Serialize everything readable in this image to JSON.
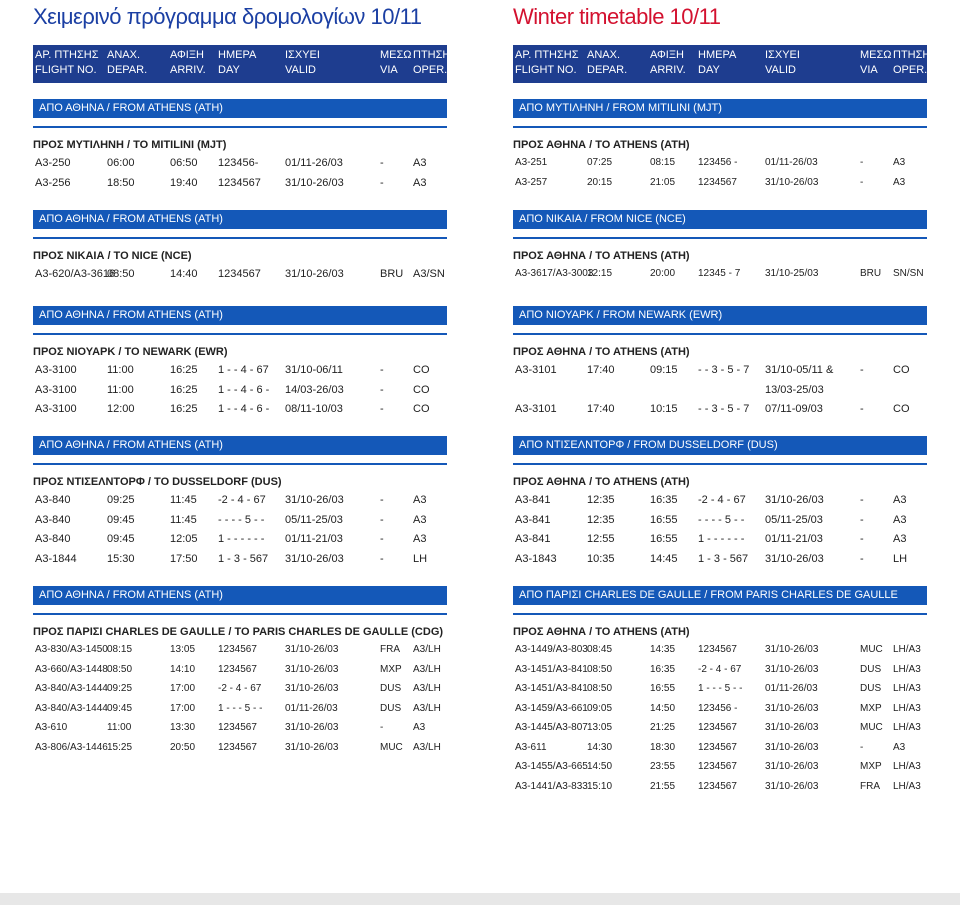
{
  "left": {
    "title": "Χειμερινό πρόγραμμα δρομολογίων 10/11",
    "header": {
      "gr": [
        "ΑΡ. ΠΤΗΣΗΣ",
        "ΑΝΑΧ.",
        "ΑΦΙΞΗ",
        "ΗΜΕΡΑ",
        "ΙΣΧΥΕΙ",
        "ΜΕΣΩ",
        "ΠΤΗΣΗ"
      ],
      "en": [
        "FLIGHT NO.",
        "DEPAR.",
        "ARRIV.",
        "DAY",
        "VALID",
        "VIA",
        "OPER."
      ]
    },
    "sections": [
      {
        "bar": "ΑΠΟ ΑΘΗΝΑ / FROM ATHENS (ATH)",
        "sub": "ΠΡΟΣ ΜΥΤΙΛΗΝΗ / TO MITILINI (MJT)",
        "rows": [
          [
            "A3-250",
            "06:00",
            "06:50",
            "123456-",
            "01/11-26/03",
            "-",
            "A3"
          ],
          [
            "A3-256",
            "18:50",
            "19:40",
            "1234567",
            "31/10-26/03",
            "-",
            "A3"
          ]
        ]
      },
      {
        "bar": "ΑΠΟ ΑΘΗΝΑ / FROM ATHENS (ATH)",
        "sub": "ΠΡΟΣ ΝΙΚΑΙΑ / TO NICE (NCE)",
        "rows": [
          [
            "A3-620/A3-3616",
            "08:50",
            "14:40",
            "1234567",
            "31/10-26/03",
            "BRU",
            "A3/SN"
          ]
        ]
      },
      {
        "bar": "ΑΠΟ ΑΘΗΝΑ / FROM ATHENS (ATH)",
        "sub": "ΠΡΟΣ ΝΙΟΥΑΡΚ / TO NEWARK (EWR)",
        "rows": [
          [
            "A3-3100",
            "11:00",
            "16:25",
            "1 - - 4 - 67",
            "31/10-06/11",
            "-",
            "CO"
          ],
          [
            "A3-3100",
            "11:00",
            "16:25",
            "1 - - 4 - 6 -",
            "14/03-26/03",
            "-",
            "CO"
          ],
          [
            "A3-3100",
            "12:00",
            "16:25",
            "1 - - 4 - 6 -",
            "08/11-10/03",
            "-",
            "CO"
          ]
        ]
      },
      {
        "bar": "ΑΠΟ ΑΘΗΝΑ / FROM ATHENS (ATH)",
        "sub": "ΠΡΟΣ ΝΤΙΣΕΛΝΤΟΡΦ / TO DUSSELDORF (DUS)",
        "rows": [
          [
            "A3-840",
            "09:25",
            "11:45",
            "-2 - 4 - 67",
            "31/10-26/03",
            "-",
            "A3"
          ],
          [
            "A3-840",
            "09:45",
            "11:45",
            "- - - - 5 - -",
            "05/11-25/03",
            "-",
            "A3"
          ],
          [
            "A3-840",
            "09:45",
            "12:05",
            "1 - - - - - -",
            "01/11-21/03",
            "-",
            "A3"
          ],
          [
            "A3-1844",
            "15:30",
            "17:50",
            "1 - 3 - 567",
            "31/10-26/03",
            "-",
            "LH"
          ]
        ]
      },
      {
        "bar": "ΑΠΟ ΑΘΗΝΑ / FROM ATHENS (ATH)",
        "sub": "ΠΡΟΣ ΠΑΡΙΣΙ CHARLES DE GAULLE / TO PARIS CHARLES DE GAULLE (CDG)",
        "rows": [
          [
            "A3-830/A3-1450",
            "08:15",
            "13:05",
            "1234567",
            "31/10-26/03",
            "FRA",
            "A3/LH"
          ],
          [
            "A3-660/A3-1448",
            "08:50",
            "14:10",
            "1234567",
            "31/10-26/03",
            "MXP",
            "A3/LH"
          ],
          [
            "A3-840/A3-1444",
            "09:25",
            "17:00",
            "-2 - 4 - 67",
            "31/10-26/03",
            "DUS",
            "A3/LH"
          ],
          [
            "A3-840/A3-1444",
            "09:45",
            "17:00",
            "1 - - - 5 - -",
            "01/11-26/03",
            "DUS",
            "A3/LH"
          ],
          [
            "A3-610",
            "11:00",
            "13:30",
            "1234567",
            "31/10-26/03",
            "-",
            "A3"
          ],
          [
            "A3-806/A3-1446",
            "15:25",
            "20:50",
            "1234567",
            "31/10-26/03",
            "MUC",
            "A3/LH"
          ]
        ]
      }
    ]
  },
  "right": {
    "title": "Winter timetable 10/11",
    "header": {
      "gr": [
        "ΑΡ. ΠΤΗΣΗΣ",
        "ΑΝΑΧ.",
        "ΑΦΙΞΗ",
        "ΗΜΕΡΑ",
        "ΙΣΧΥΕΙ",
        "ΜΕΣΩ",
        "ΠΤΗΣΗ"
      ],
      "en": [
        "FLIGHT NO.",
        "DEPAR.",
        "ARRIV.",
        "DAY",
        "VALID",
        "VIA",
        "OPER."
      ]
    },
    "sections": [
      {
        "bar": "ΑΠΟ ΜΥΤΙΛΗΝΗ / FROM MITILINI (MJT)",
        "sub": "ΠΡΟΣ ΑΘΗΝΑ / TO ATHENS (ATH)",
        "rows": [
          [
            "A3-251",
            "07:25",
            "08:15",
            "123456 -",
            "01/11-26/03",
            "-",
            "A3"
          ],
          [
            "A3-257",
            "20:15",
            "21:05",
            "1234567",
            "31/10-26/03",
            "-",
            "A3"
          ]
        ]
      },
      {
        "bar": "ΑΠΟ ΝΙΚΑΙΑ / FROM NICE (NCE)",
        "sub": "ΠΡΟΣ ΑΘΗΝΑ / TO ATHENS (ATH)",
        "rows": [
          [
            "A3-3617/A3-3003",
            "12:15",
            "20:00",
            "12345 - 7",
            "31/10-25/03",
            "BRU",
            "SN/SN"
          ]
        ]
      },
      {
        "bar": "ΑΠΟ ΝΙΟΥΑΡΚ / FROM NEWARK (EWR)",
        "sub": "ΠΡΟΣ ΑΘΗΝΑ / TO ATHENS (ATH)",
        "rows": [
          [
            "A3-3101",
            "17:40",
            "09:15",
            "- - 3 - 5 - 7",
            "31/10-05/11 &",
            "-",
            "CO"
          ],
          [
            "",
            "",
            "",
            "",
            "13/03-25/03",
            "",
            ""
          ],
          [
            "A3-3101",
            "17:40",
            "10:15",
            "- - 3 - 5 - 7",
            "07/11-09/03",
            "-",
            "CO"
          ]
        ]
      },
      {
        "bar": "ΑΠΟ ΝΤΙΣΕΛΝΤΟΡΦ / FROM DUSSELDORF (DUS)",
        "sub": "ΠΡΟΣ ΑΘΗΝΑ / TO ATHENS (ATH)",
        "rows": [
          [
            "A3-841",
            "12:35",
            "16:35",
            "-2 - 4 - 67",
            "31/10-26/03",
            "-",
            "A3"
          ],
          [
            "A3-841",
            "12:35",
            "16:55",
            "- - - - 5 - -",
            "05/11-25/03",
            "-",
            "A3"
          ],
          [
            "A3-841",
            "12:55",
            "16:55",
            "1 - - - - - -",
            "01/11-21/03",
            "-",
            "A3"
          ],
          [
            "A3-1843",
            "10:35",
            "14:45",
            "1 - 3 - 567",
            "31/10-26/03",
            "-",
            "LH"
          ]
        ]
      },
      {
        "bar": "ΑΠΟ ΠΑΡΙΣΙ CHARLES DE GAULLE / FROM PARIS CHARLES DE GAULLE (CDG)",
        "sub": "ΠΡΟΣ ΑΘΗΝΑ / TO ATHENS (ATH)",
        "rows": [
          [
            "A3-1449/A3-803",
            "08:45",
            "14:35",
            "1234567",
            "31/10-26/03",
            "MUC",
            "LH/A3"
          ],
          [
            "A3-1451/A3-841",
            "08:50",
            "16:35",
            "-2 - 4 - 67",
            "31/10-26/03",
            "DUS",
            "LH/A3"
          ],
          [
            "A3-1451/A3-841",
            "08:50",
            "16:55",
            "1 - - - 5 - -",
            "01/11-26/03",
            "DUS",
            "LH/A3"
          ],
          [
            "A3-1459/A3-661",
            "09:05",
            "14:50",
            "123456 -",
            "31/10-26/03",
            "MXP",
            "LH/A3"
          ],
          [
            "A3-1445/A3-807",
            "13:05",
            "21:25",
            "1234567",
            "31/10-26/03",
            "MUC",
            "LH/A3"
          ],
          [
            "A3-611",
            "14:30",
            "18:30",
            "1234567",
            "31/10-26/03",
            "-",
            "A3"
          ],
          [
            "A3-1455/A3-665",
            "14:50",
            "23:55",
            "1234567",
            "31/10-26/03",
            "MXP",
            "LH/A3"
          ],
          [
            "A3-1441/A3-833",
            "15:10",
            "21:55",
            "1234567",
            "31/10-26/03",
            "FRA",
            "LH/A3"
          ]
        ]
      }
    ]
  },
  "colors": {
    "header_bg": "#1e3d8f",
    "section_bar": "#1458b8",
    "title_left": "#1b3fa3",
    "title_right": "#d3112f"
  }
}
